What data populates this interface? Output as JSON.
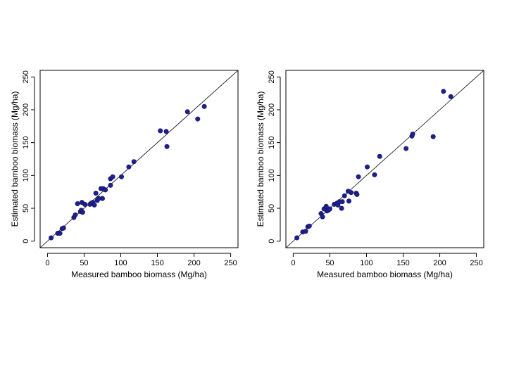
{
  "chart_data": [
    {
      "type": "scatter",
      "xlabel": "Measured bamboo biomass (Mg/ha)",
      "ylabel": "Estimated bamboo biomass (Mg/ha)",
      "xlim": [
        -10,
        260
      ],
      "ylim": [
        -10,
        260
      ],
      "xticks": [
        "0",
        "50",
        "100",
        "150",
        "200",
        "250"
      ],
      "yticks": [
        "0",
        "50",
        "100",
        "150",
        "200",
        "250"
      ],
      "reference_line": "1:1",
      "point_color": "#1f1f8f",
      "points": [
        [
          5,
          5
        ],
        [
          14,
          12
        ],
        [
          17,
          12
        ],
        [
          20,
          19
        ],
        [
          22,
          20
        ],
        [
          36,
          36
        ],
        [
          38,
          40
        ],
        [
          41,
          57
        ],
        [
          45,
          45
        ],
        [
          46,
          47
        ],
        [
          47,
          59
        ],
        [
          48,
          44
        ],
        [
          51,
          56
        ],
        [
          58,
          56
        ],
        [
          60,
          58
        ],
        [
          62,
          59
        ],
        [
          64,
          55
        ],
        [
          66,
          73
        ],
        [
          68,
          62
        ],
        [
          70,
          65
        ],
        [
          73,
          80
        ],
        [
          76,
          80
        ],
        [
          75,
          65
        ],
        [
          79,
          78
        ],
        [
          86,
          95
        ],
        [
          86,
          85
        ],
        [
          89,
          98
        ],
        [
          101,
          98
        ],
        [
          111,
          113
        ],
        [
          118,
          121
        ],
        [
          154,
          168
        ],
        [
          162,
          167
        ],
        [
          163,
          144
        ],
        [
          191,
          197
        ],
        [
          205,
          186
        ],
        [
          214,
          205
        ]
      ]
    },
    {
      "type": "scatter",
      "xlabel": "Measured bamboo biomass (Mg/ha)",
      "ylabel": "Estimated bamboo biomass (Mg/ha)",
      "xlim": [
        -10,
        260
      ],
      "ylim": [
        -10,
        260
      ],
      "xticks": [
        "0",
        "50",
        "100",
        "150",
        "200",
        "250"
      ],
      "yticks": [
        "0",
        "50",
        "100",
        "150",
        "200",
        "250"
      ],
      "reference_line": "1:1",
      "point_color": "#1f1f8f",
      "points": [
        [
          5,
          5
        ],
        [
          13,
          14
        ],
        [
          17,
          15
        ],
        [
          20,
          22
        ],
        [
          22,
          23
        ],
        [
          38,
          42
        ],
        [
          40,
          37
        ],
        [
          42,
          49
        ],
        [
          45,
          53
        ],
        [
          46,
          46
        ],
        [
          48,
          47
        ],
        [
          50,
          49
        ],
        [
          56,
          56
        ],
        [
          60,
          58
        ],
        [
          61,
          55
        ],
        [
          63,
          60
        ],
        [
          66,
          50
        ],
        [
          67,
          60
        ],
        [
          70,
          69
        ],
        [
          75,
          76
        ],
        [
          76,
          61
        ],
        [
          79,
          74
        ],
        [
          86,
          73
        ],
        [
          87,
          71
        ],
        [
          89,
          98
        ],
        [
          101,
          113
        ],
        [
          111,
          101
        ],
        [
          118,
          129
        ],
        [
          154,
          141
        ],
        [
          162,
          160
        ],
        [
          163,
          163
        ],
        [
          191,
          159
        ],
        [
          205,
          228
        ],
        [
          215,
          220
        ]
      ]
    }
  ]
}
